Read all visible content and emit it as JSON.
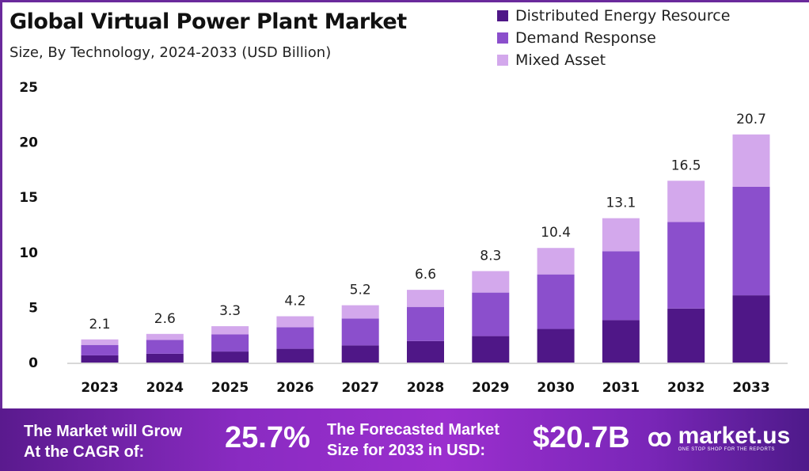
{
  "header": {
    "title": "Global Virtual Power Plant Market",
    "subtitle": "Size, By Technology, 2024-2033 (USD Billion)"
  },
  "chart_data": {
    "type": "bar",
    "stacked": true,
    "title": "Global Virtual Power Plant Market",
    "subtitle": "Size, By Technology, 2024-2033 (USD Billion)",
    "xlabel": "",
    "ylabel": "",
    "ylim": [
      0,
      25
    ],
    "yticks": [
      0,
      5,
      10,
      15,
      20,
      25
    ],
    "grid": false,
    "legend_position": "top-right",
    "categories": [
      "2023",
      "2024",
      "2025",
      "2026",
      "2027",
      "2028",
      "2029",
      "2030",
      "2031",
      "2032",
      "2033"
    ],
    "totals": [
      2.1,
      2.6,
      3.3,
      4.2,
      5.2,
      6.6,
      8.3,
      10.4,
      13.1,
      16.5,
      20.7
    ],
    "series": [
      {
        "name": "Distributed Energy Resource",
        "color": "#4f1787",
        "values": [
          0.65,
          0.8,
          1.0,
          1.25,
          1.55,
          1.95,
          2.4,
          3.05,
          3.85,
          4.9,
          6.1
        ]
      },
      {
        "name": "Demand Response",
        "color": "#8b4fcc",
        "values": [
          0.95,
          1.25,
          1.55,
          1.95,
          2.45,
          3.1,
          3.95,
          4.95,
          6.25,
          7.85,
          9.85
        ]
      },
      {
        "name": "Mixed Asset",
        "color": "#d3a8ec",
        "values": [
          0.5,
          0.55,
          0.75,
          1.0,
          1.2,
          1.55,
          1.95,
          2.4,
          3.0,
          3.75,
          4.75
        ]
      }
    ]
  },
  "footer": {
    "cagr_label_line1": "The Market will Grow",
    "cagr_label_line2": "At the CAGR of:",
    "cagr_value": "25.7%",
    "forecast_label_line1": "The Forecasted Market",
    "forecast_label_line2": "Size for 2033 in USD:",
    "forecast_value": "$20.7B",
    "brand_name": "market.us",
    "brand_tagline": "ONE STOP SHOP FOR THE REPORTS"
  }
}
